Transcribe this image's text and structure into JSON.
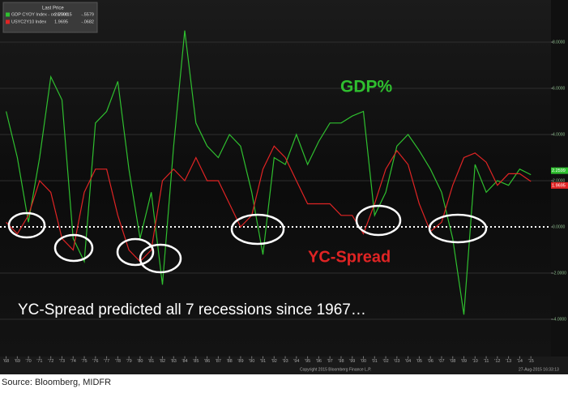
{
  "chart_data": {
    "type": "line",
    "legend_title": "Last Price",
    "x": [
      1968,
      1969,
      1970,
      1971,
      1972,
      1973,
      1974,
      1975,
      1976,
      1977,
      1978,
      1979,
      1980,
      1981,
      1982,
      1983,
      1984,
      1985,
      1986,
      1987,
      1988,
      1989,
      1990,
      1991,
      1992,
      1993,
      1994,
      1995,
      1996,
      1997,
      1998,
      1999,
      2000,
      2001,
      2002,
      2003,
      2004,
      2005,
      2006,
      2007,
      2008,
      2009,
      2010,
      2011,
      2012,
      2013,
      2014,
      2015
    ],
    "series": [
      {
        "name": "GDP CYOY Index - on 6/30/15",
        "color": "#2fbf2f",
        "last_price_label": "2.2599",
        "change_label": "-.5579",
        "values": [
          5.0,
          3.0,
          0.2,
          3.0,
          6.5,
          5.5,
          -0.5,
          -1.5,
          4.5,
          5.0,
          6.3,
          2.5,
          -0.5,
          1.5,
          -2.5,
          3.5,
          8.5,
          4.5,
          3.5,
          3.0,
          4.0,
          3.5,
          1.5,
          -1.2,
          3.0,
          2.7,
          4.0,
          2.7,
          3.7,
          4.5,
          4.5,
          4.8,
          5.0,
          0.5,
          1.5,
          3.5,
          4.0,
          3.3,
          2.5,
          1.5,
          -0.5,
          -3.8,
          2.7,
          1.5,
          2.0,
          1.8,
          2.5,
          2.2599
        ]
      },
      {
        "name": "USYC2Y10 Index",
        "color": "#e02424",
        "last_price_label": "1.9695",
        "change_label": "-.0682",
        "values": [
          0.2,
          -0.3,
          0.5,
          2.0,
          1.5,
          -0.5,
          -1.0,
          1.5,
          2.5,
          2.5,
          0.5,
          -1.0,
          -1.5,
          -1.0,
          2.0,
          2.5,
          2.0,
          3.0,
          2.0,
          2.0,
          1.0,
          0.0,
          0.5,
          2.5,
          3.5,
          3.0,
          2.0,
          1.0,
          1.0,
          1.0,
          0.5,
          0.5,
          -0.3,
          1.0,
          2.5,
          3.3,
          2.7,
          1.0,
          -0.2,
          0.2,
          1.8,
          3.0,
          3.2,
          2.8,
          1.8,
          2.3,
          2.3,
          1.9695
        ]
      }
    ],
    "xlim": [
      1967.45,
      2016.8
    ],
    "xticks": [
      {
        "value": 1968,
        "label": "'68"
      },
      {
        "value": 1969,
        "label": "'69"
      },
      {
        "value": 1970,
        "label": "'70"
      },
      {
        "value": 1971,
        "label": "'71"
      },
      {
        "value": 1972,
        "label": "'72"
      },
      {
        "value": 1973,
        "label": "'73"
      },
      {
        "value": 1974,
        "label": "'74"
      },
      {
        "value": 1975,
        "label": "'75"
      },
      {
        "value": 1976,
        "label": "'76"
      },
      {
        "value": 1977,
        "label": "'77"
      },
      {
        "value": 1978,
        "label": "'78"
      },
      {
        "value": 1979,
        "label": "'79"
      },
      {
        "value": 1980,
        "label": "'80"
      },
      {
        "value": 1981,
        "label": "'81"
      },
      {
        "value": 1982,
        "label": "'82"
      },
      {
        "value": 1983,
        "label": "'83"
      },
      {
        "value": 1984,
        "label": "'84"
      },
      {
        "value": 1985,
        "label": "'85"
      },
      {
        "value": 1986,
        "label": "'86"
      },
      {
        "value": 1987,
        "label": "'87"
      },
      {
        "value": 1988,
        "label": "'88"
      },
      {
        "value": 1989,
        "label": "'89"
      },
      {
        "value": 1990,
        "label": "'90"
      },
      {
        "value": 1991,
        "label": "'91"
      },
      {
        "value": 1992,
        "label": "'92"
      },
      {
        "value": 1993,
        "label": "'93"
      },
      {
        "value": 1994,
        "label": "'94"
      },
      {
        "value": 1995,
        "label": "'95"
      },
      {
        "value": 1996,
        "label": "'96"
      },
      {
        "value": 1997,
        "label": "'97"
      },
      {
        "value": 1998,
        "label": "'98"
      },
      {
        "value": 1999,
        "label": "'99"
      },
      {
        "value": 2000,
        "label": "'00"
      },
      {
        "value": 2001,
        "label": "'01"
      },
      {
        "value": 2002,
        "label": "'02"
      },
      {
        "value": 2003,
        "label": "'03"
      },
      {
        "value": 2004,
        "label": "'04"
      },
      {
        "value": 2005,
        "label": "'05"
      },
      {
        "value": 2006,
        "label": "'06"
      },
      {
        "value": 2007,
        "label": "'07"
      },
      {
        "value": 2008,
        "label": "'08"
      },
      {
        "value": 2009,
        "label": "'09"
      },
      {
        "value": 2010,
        "label": "'10"
      },
      {
        "value": 2011,
        "label": "'11"
      },
      {
        "value": 2012,
        "label": "'12"
      },
      {
        "value": 2013,
        "label": "'13"
      },
      {
        "value": 2014,
        "label": "'14"
      },
      {
        "value": 2015,
        "label": "'15"
      }
    ],
    "ylim": [
      -5.6,
      9.6
    ],
    "yticks": [
      {
        "value": -4,
        "label": "-4.0000"
      },
      {
        "value": -2,
        "label": "-2.0000"
      },
      {
        "value": 0,
        "label": "0.0000"
      },
      {
        "value": 2,
        "label": "2.0000"
      },
      {
        "value": 4,
        "label": "4.0000"
      },
      {
        "value": 6,
        "label": "6.0000"
      },
      {
        "value": 8,
        "label": "8.0000"
      }
    ],
    "grid": true,
    "annotations": [
      "GDP%",
      "YC-Spread",
      "YC-Spread predicted all 7 recessions since 1967…"
    ],
    "copyright": "Copyright 2015 Bloomberg Finance L.P.",
    "timestamp": "27-Aug-2015 16:33:13",
    "source": "Source: Bloomberg, MIDFR"
  }
}
